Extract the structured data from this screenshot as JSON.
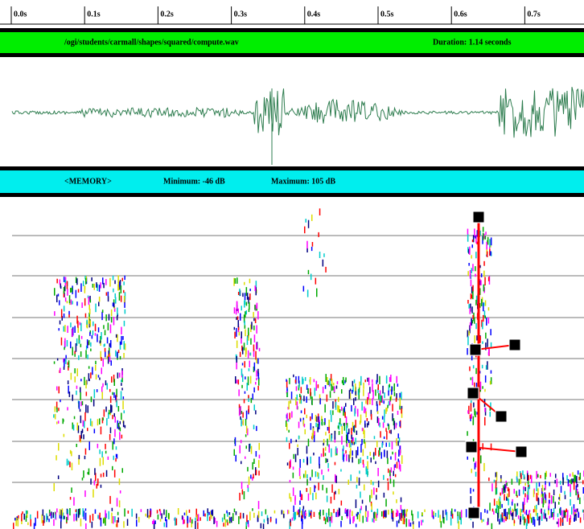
{
  "time_axis": {
    "labels": [
      "0.0s",
      "0.1s",
      "0.2s",
      "0.3s",
      "0.4s",
      "0.5s",
      "0.6s",
      "0.7s"
    ]
  },
  "file_bar": {
    "path": "/ogi/students/carmall/shapes/squared/compute.wav",
    "duration": "Duration: 1.14 seconds"
  },
  "memory_bar": {
    "label": "<MEMORY>",
    "minimum": "Minimum: -46 dB",
    "maximum": "Maximum: 105 dB"
  }
}
